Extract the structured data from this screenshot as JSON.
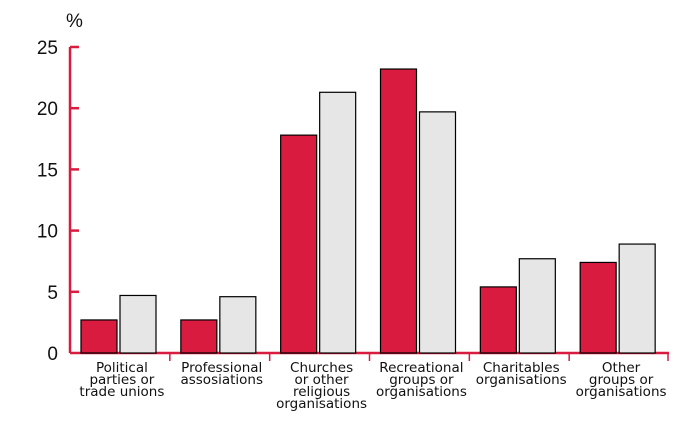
{
  "chart_data": {
    "type": "bar",
    "ylabel": "%",
    "ylim": [
      0,
      25
    ],
    "yticks": [
      0,
      5,
      10,
      15,
      20,
      25
    ],
    "grid": false,
    "categories": [
      [
        "Political",
        "parties or",
        "trade unions"
      ],
      [
        "Professional",
        "assosiations"
      ],
      [
        "Churches",
        "or other",
        "religious",
        "organisations"
      ],
      [
        "Recreational",
        "groups or",
        "organisations"
      ],
      [
        "Charitables",
        "organisations"
      ],
      [
        "Other",
        "groups or",
        "organisations"
      ]
    ],
    "series": [
      {
        "values": [
          2.7,
          2.7,
          17.8,
          23.2,
          5.4,
          7.4
        ]
      },
      {
        "values": [
          4.7,
          4.6,
          21.3,
          19.7,
          7.7,
          8.9
        ]
      }
    ],
    "colors": [
      "#d81b3f",
      "#e6e6e6"
    ],
    "axis_color": "#d81b3f"
  }
}
